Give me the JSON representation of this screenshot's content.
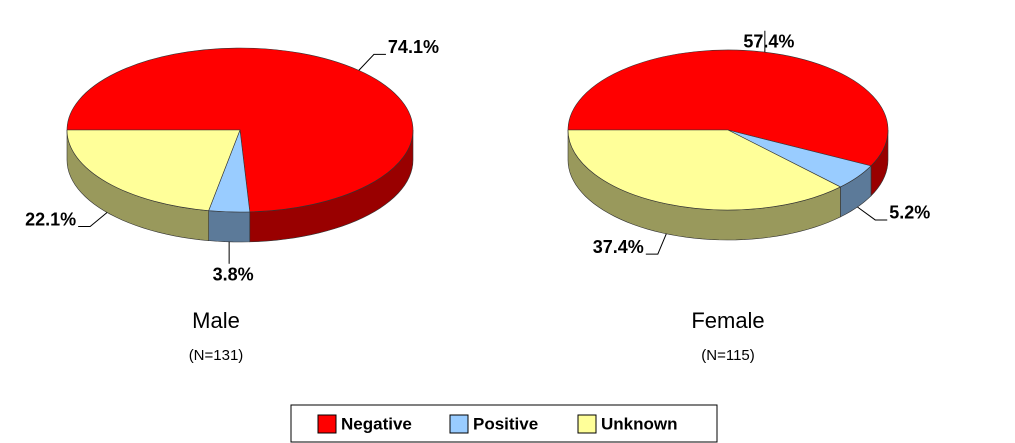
{
  "chart_data": [
    {
      "type": "pie",
      "title": "Male",
      "subtitle": "(N=131)",
      "categories": [
        "Negative",
        "Positive",
        "Unknown"
      ],
      "values": [
        74.1,
        3.8,
        22.1
      ],
      "value_labels": [
        "74.1%",
        "3.8%",
        "22.1%"
      ],
      "colors": [
        "#ff0000",
        "#99ccff",
        "#ffff99"
      ]
    },
    {
      "type": "pie",
      "title": "Female",
      "subtitle": "(N=115)",
      "categories": [
        "Negative",
        "Positive",
        "Unknown"
      ],
      "values": [
        57.4,
        5.2,
        37.4
      ],
      "value_labels": [
        "57.4%",
        "5.2%",
        "37.4%"
      ],
      "colors": [
        "#ff0000",
        "#99ccff",
        "#ffff99"
      ]
    }
  ]
}
